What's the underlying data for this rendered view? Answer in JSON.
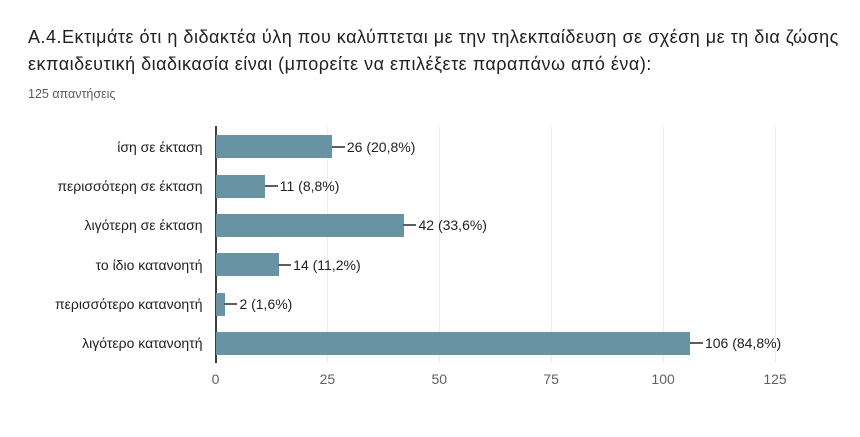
{
  "header": {
    "title": "Α.4.Εκτιμάτε ότι η διδακτέα ύλη που καλύπτεται με την τηλεκπαίδευση σε σχέση με τη δια ζώσης εκπαιδευτική διαδικασία είναι (μπορείτε να επιλέξετε παραπάνω από ένα):",
    "responses_label": "125 απαντήσεις"
  },
  "chart_data": {
    "type": "bar",
    "orientation": "horizontal",
    "title": "Α.4.Εκτιμάτε ότι η διδακτέα ύλη που καλύπτεται με την τηλεκπαίδευση σε σχέση με τη δια ζώσης εκπαιδευτική διαδικασία είναι (μπορείτε να επιλέξετε παραπάνω από ένα):",
    "subtitle": "125 απαντήσεις",
    "categories": [
      "ίση σε έκταση",
      "περισσότερη σε έκταση",
      "λιγότερη σε έκταση",
      "το ίδιο κατανοητή",
      "περισσότερο κατανοητή",
      "λιγότερο κατανοητή"
    ],
    "values": [
      26,
      11,
      42,
      14,
      2,
      106
    ],
    "value_labels": [
      "26 (20,8%)",
      "11 (8,8%)",
      "42 (33,6%)",
      "14 (11,2%)",
      "2 (1,6%)",
      "106 (84,8%)"
    ],
    "x_ticks": [
      0,
      25,
      50,
      75,
      100,
      125
    ],
    "xlim": [
      0,
      125
    ],
    "xlabel": "",
    "ylabel": "",
    "bar_color": "#6893a3",
    "grid": true,
    "legend": false
  }
}
